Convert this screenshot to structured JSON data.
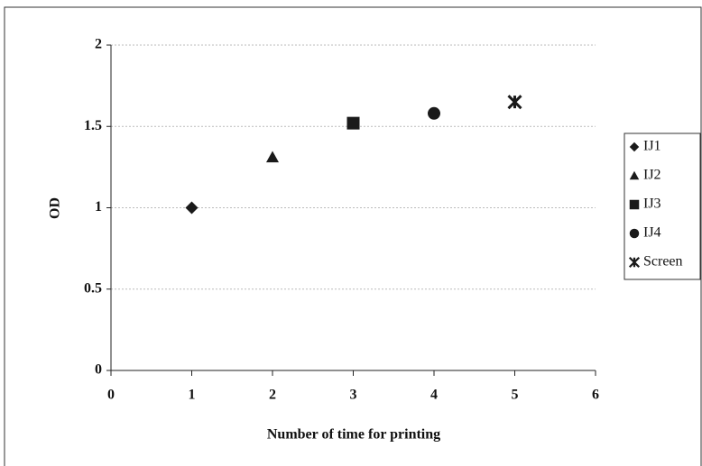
{
  "chart_data": {
    "type": "scatter",
    "x_label": "Number of time for printing",
    "y_label": "OD",
    "xlim": [
      0,
      6
    ],
    "xticks": [
      0,
      1,
      2,
      3,
      4,
      5,
      6
    ],
    "ylim": [
      0,
      2
    ],
    "yticks": [
      0,
      0.5,
      1,
      1.5,
      2
    ],
    "grid": true,
    "legend": "right",
    "series": [
      {
        "name": "IJ1",
        "color": "#1a1a1a",
        "marker": "diamond",
        "x": [
          1
        ],
        "values": [
          1.0
        ]
      },
      {
        "name": "IJ2",
        "color": "#1a1a1a",
        "marker": "triangle",
        "x": [
          2
        ],
        "values": [
          1.31
        ]
      },
      {
        "name": "IJ3",
        "color": "#1a1a1a",
        "marker": "square",
        "x": [
          3
        ],
        "values": [
          1.52
        ]
      },
      {
        "name": "IJ4",
        "color": "#1a1a1a",
        "marker": "circle",
        "x": [
          4
        ],
        "values": [
          1.58
        ]
      },
      {
        "name": "Screen",
        "color": "#1a1a1a",
        "marker": "star",
        "x": [
          5
        ],
        "values": [
          1.65
        ]
      }
    ]
  }
}
